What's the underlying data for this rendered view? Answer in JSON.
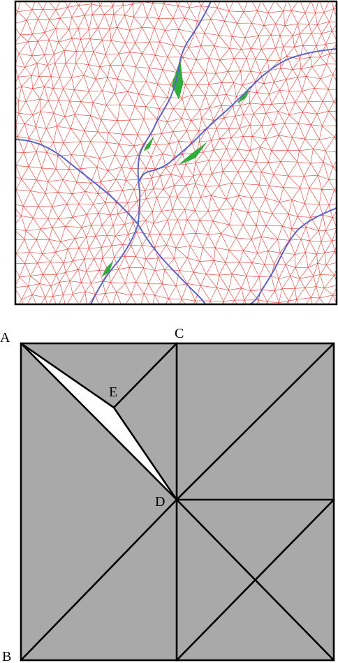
{
  "panel_top": {
    "description_visible": false,
    "colors": {
      "mesh": "#e23a2f",
      "seam": "#5a64c8",
      "highlight": "#2fae3a",
      "frame": "#000000",
      "background": "#ffffff"
    }
  },
  "panel_bottom": {
    "colors": {
      "fill": "#a9a9a9",
      "gap": "#ffffff",
      "lines": "#000000"
    },
    "labels": {
      "a": "A",
      "b": "B",
      "c": "C",
      "d": "D",
      "e": "E"
    }
  }
}
